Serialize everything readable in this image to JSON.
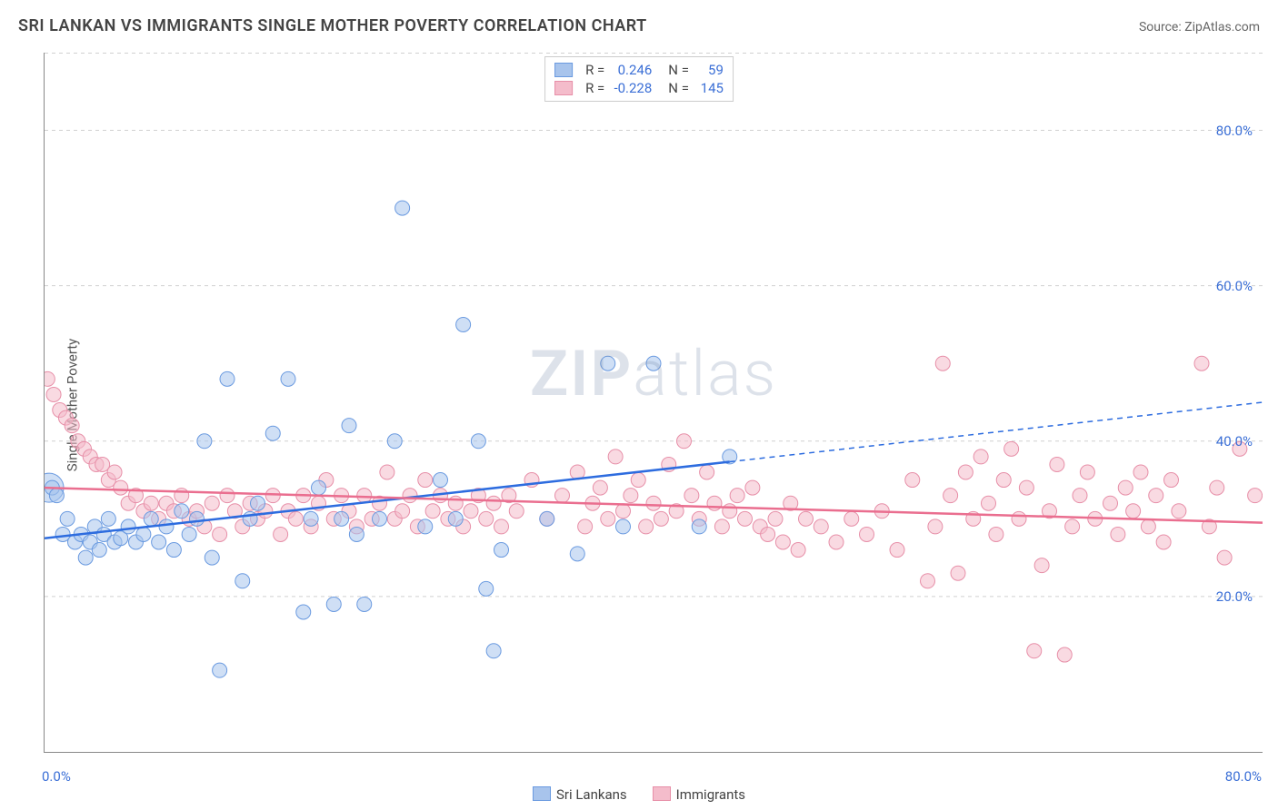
{
  "title": "SRI LANKAN VS IMMIGRANTS SINGLE MOTHER POVERTY CORRELATION CHART",
  "source_label": "Source: ",
  "source_name": "ZipAtlas.com",
  "y_axis_label": "Single Mother Poverty",
  "watermark_a": "ZIP",
  "watermark_b": "atlas",
  "chart": {
    "type": "scatter",
    "xlim": [
      0,
      80
    ],
    "ylim": [
      0,
      90
    ],
    "y_ticks": [
      20,
      40,
      60,
      80
    ],
    "y_tick_labels": [
      "20.0%",
      "40.0%",
      "60.0%",
      "80.0%"
    ],
    "x_ticks": [
      0,
      10,
      20,
      30,
      40,
      50,
      60,
      70,
      80
    ],
    "x_min_label": "0.0%",
    "x_max_label": "80.0%",
    "grid_color": "#d0d0d0",
    "axis_color": "#888888",
    "tick_label_color": "#3b6fd6",
    "series": [
      {
        "key": "sri_lankans",
        "label": "Sri Lankans",
        "fill": "#a8c4ec",
        "stroke": "#6a9ae0",
        "fill_opacity": 0.55,
        "marker_r": 8,
        "R": "0.246",
        "N": "59",
        "trend": {
          "y_at_x0": 27.5,
          "y_at_xmax": 45.0,
          "solid_until_x": 45,
          "color": "#2d6cdf",
          "width": 2.5
        },
        "points": [
          [
            0.5,
            34
          ],
          [
            0.8,
            33
          ],
          [
            1.2,
            28
          ],
          [
            1.5,
            30
          ],
          [
            2.0,
            27
          ],
          [
            2.4,
            28
          ],
          [
            2.7,
            25
          ],
          [
            3.0,
            27
          ],
          [
            3.3,
            29
          ],
          [
            3.6,
            26
          ],
          [
            3.9,
            28
          ],
          [
            4.2,
            30
          ],
          [
            4.6,
            27
          ],
          [
            5.0,
            27.5
          ],
          [
            5.5,
            29
          ],
          [
            6.0,
            27
          ],
          [
            6.5,
            28
          ],
          [
            7.0,
            30
          ],
          [
            7.5,
            27
          ],
          [
            8.0,
            29
          ],
          [
            8.5,
            26
          ],
          [
            9.0,
            31
          ],
          [
            9.5,
            28
          ],
          [
            10,
            30
          ],
          [
            10.5,
            40
          ],
          [
            11,
            25
          ],
          [
            11.5,
            10.5
          ],
          [
            12,
            48
          ],
          [
            13,
            22
          ],
          [
            13.5,
            30
          ],
          [
            14,
            32
          ],
          [
            15,
            41
          ],
          [
            16,
            48
          ],
          [
            17,
            18
          ],
          [
            17.5,
            30
          ],
          [
            18,
            34
          ],
          [
            19,
            19
          ],
          [
            19.5,
            30
          ],
          [
            20,
            42
          ],
          [
            20.5,
            28
          ],
          [
            21,
            19
          ],
          [
            22,
            30
          ],
          [
            23,
            40
          ],
          [
            23.5,
            70
          ],
          [
            25,
            29
          ],
          [
            26,
            35
          ],
          [
            27,
            30
          ],
          [
            27.5,
            55
          ],
          [
            28.5,
            40
          ],
          [
            29,
            21
          ],
          [
            29.5,
            13
          ],
          [
            30,
            26
          ],
          [
            33,
            30
          ],
          [
            35,
            25.5
          ],
          [
            37,
            50
          ],
          [
            38,
            29
          ],
          [
            40,
            50
          ],
          [
            43,
            29
          ],
          [
            45,
            38
          ]
        ],
        "big_points": [
          [
            0.3,
            34,
            16
          ]
        ]
      },
      {
        "key": "immigrants",
        "label": "Immigrants",
        "fill": "#f4bccb",
        "stroke": "#e78fa8",
        "fill_opacity": 0.55,
        "marker_r": 8,
        "R": "-0.228",
        "N": "145",
        "trend": {
          "y_at_x0": 34.0,
          "y_at_xmax": 29.5,
          "solid_until_x": 80,
          "color": "#ea6e8f",
          "width": 2.5
        },
        "points": [
          [
            0.2,
            48
          ],
          [
            0.6,
            46
          ],
          [
            1.0,
            44
          ],
          [
            1.4,
            43
          ],
          [
            1.8,
            42
          ],
          [
            2.2,
            40
          ],
          [
            2.6,
            39
          ],
          [
            3.0,
            38
          ],
          [
            3.4,
            37
          ],
          [
            3.8,
            37
          ],
          [
            4.2,
            35
          ],
          [
            4.6,
            36
          ],
          [
            5.0,
            34
          ],
          [
            5.5,
            32
          ],
          [
            6.0,
            33
          ],
          [
            6.5,
            31
          ],
          [
            7.0,
            32
          ],
          [
            7.5,
            30
          ],
          [
            8.0,
            32
          ],
          [
            8.5,
            31
          ],
          [
            9.0,
            33
          ],
          [
            9.5,
            30
          ],
          [
            10,
            31
          ],
          [
            10.5,
            29
          ],
          [
            11,
            32
          ],
          [
            11.5,
            28
          ],
          [
            12,
            33
          ],
          [
            12.5,
            31
          ],
          [
            13,
            29
          ],
          [
            13.5,
            32
          ],
          [
            14,
            30
          ],
          [
            14.5,
            31
          ],
          [
            15,
            33
          ],
          [
            15.5,
            28
          ],
          [
            16,
            31
          ],
          [
            16.5,
            30
          ],
          [
            17,
            33
          ],
          [
            17.5,
            29
          ],
          [
            18,
            32
          ],
          [
            18.5,
            35
          ],
          [
            19,
            30
          ],
          [
            19.5,
            33
          ],
          [
            20,
            31
          ],
          [
            20.5,
            29
          ],
          [
            21,
            33
          ],
          [
            21.5,
            30
          ],
          [
            22,
            32
          ],
          [
            22.5,
            36
          ],
          [
            23,
            30
          ],
          [
            23.5,
            31
          ],
          [
            24,
            33
          ],
          [
            24.5,
            29
          ],
          [
            25,
            35
          ],
          [
            25.5,
            31
          ],
          [
            26,
            33
          ],
          [
            26.5,
            30
          ],
          [
            27,
            32
          ],
          [
            27.5,
            29
          ],
          [
            28,
            31
          ],
          [
            28.5,
            33
          ],
          [
            29,
            30
          ],
          [
            29.5,
            32
          ],
          [
            30,
            29
          ],
          [
            30.5,
            33
          ],
          [
            31,
            31
          ],
          [
            32,
            35
          ],
          [
            33,
            30
          ],
          [
            34,
            33
          ],
          [
            35,
            36
          ],
          [
            35.5,
            29
          ],
          [
            36,
            32
          ],
          [
            36.5,
            34
          ],
          [
            37,
            30
          ],
          [
            37.5,
            38
          ],
          [
            38,
            31
          ],
          [
            38.5,
            33
          ],
          [
            39,
            35
          ],
          [
            39.5,
            29
          ],
          [
            40,
            32
          ],
          [
            40.5,
            30
          ],
          [
            41,
            37
          ],
          [
            41.5,
            31
          ],
          [
            42,
            40
          ],
          [
            42.5,
            33
          ],
          [
            43,
            30
          ],
          [
            43.5,
            36
          ],
          [
            44,
            32
          ],
          [
            44.5,
            29
          ],
          [
            45,
            31
          ],
          [
            45.5,
            33
          ],
          [
            46,
            30
          ],
          [
            46.5,
            34
          ],
          [
            47,
            29
          ],
          [
            47.5,
            28
          ],
          [
            48,
            30
          ],
          [
            48.5,
            27
          ],
          [
            49,
            32
          ],
          [
            49.5,
            26
          ],
          [
            50,
            30
          ],
          [
            51,
            29
          ],
          [
            52,
            27
          ],
          [
            53,
            30
          ],
          [
            54,
            28
          ],
          [
            55,
            31
          ],
          [
            56,
            26
          ],
          [
            57,
            35
          ],
          [
            58,
            22
          ],
          [
            58.5,
            29
          ],
          [
            59,
            50
          ],
          [
            59.5,
            33
          ],
          [
            60,
            23
          ],
          [
            60.5,
            36
          ],
          [
            61,
            30
          ],
          [
            61.5,
            38
          ],
          [
            62,
            32
          ],
          [
            62.5,
            28
          ],
          [
            63,
            35
          ],
          [
            63.5,
            39
          ],
          [
            64,
            30
          ],
          [
            64.5,
            34
          ],
          [
            65,
            13
          ],
          [
            65.5,
            24
          ],
          [
            66,
            31
          ],
          [
            66.5,
            37
          ],
          [
            67,
            12.5
          ],
          [
            67.5,
            29
          ],
          [
            68,
            33
          ],
          [
            68.5,
            36
          ],
          [
            69,
            30
          ],
          [
            70,
            32
          ],
          [
            70.5,
            28
          ],
          [
            71,
            34
          ],
          [
            71.5,
            31
          ],
          [
            72,
            36
          ],
          [
            72.5,
            29
          ],
          [
            73,
            33
          ],
          [
            73.5,
            27
          ],
          [
            74,
            35
          ],
          [
            74.5,
            31
          ],
          [
            76,
            50
          ],
          [
            76.5,
            29
          ],
          [
            77,
            34
          ],
          [
            77.5,
            25
          ],
          [
            78.5,
            39
          ],
          [
            79.5,
            33
          ]
        ],
        "big_points": []
      }
    ]
  },
  "legend": {
    "R_label": "R =",
    "N_label": "N ="
  }
}
